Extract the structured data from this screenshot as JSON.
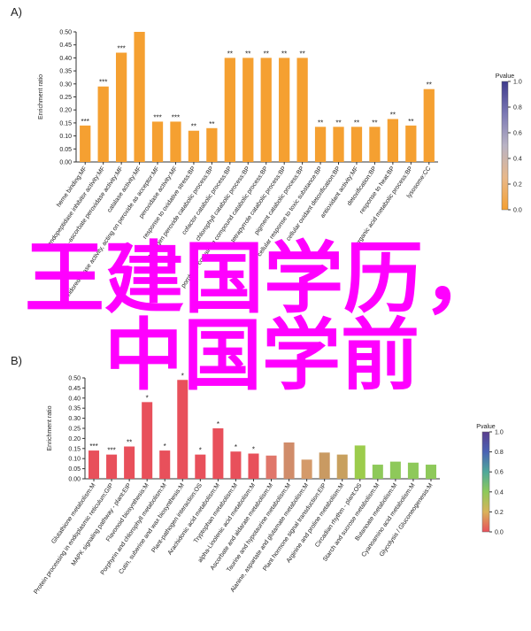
{
  "chart_data": [
    {
      "type": "bar",
      "panel": "A)",
      "ylabel": "Enrichment ratio",
      "color": "#f5a031",
      "categories": [
        "heme binding:MF",
        "endopeptidase inhibitor activity:MF",
        "L-ascorbate peroxidase activity:MF",
        "catalase activity:MF",
        "oxidoreductase activity, acting on peroxide as acceptor:MF",
        "peroxidase activity:MF",
        "response to oxidative stress:BP",
        "hydrogen peroxide catabolic process:BP",
        "cofactor catabolic process:BP",
        "chlorophyll catabolic process:BP",
        "porphyrin-containing compound catabolic process:BP",
        "tetrapyrrole catabolic process:BP",
        "pigment catabolic process:BP",
        "cellular response to toxic substance:BP",
        "cellular oxidant detoxification:BP",
        "antioxidant activity:MF",
        "detoxification:BP",
        "response to heat:BP",
        "organic acid metabolic process:BP",
        "lysosome:CC"
      ],
      "values": [
        0.14,
        0.29,
        0.42,
        0.5,
        0.155,
        0.155,
        0.12,
        0.13,
        0.4,
        0.4,
        0.4,
        0.4,
        0.4,
        0.135,
        0.135,
        0.135,
        0.135,
        0.165,
        0.14,
        0.28
      ],
      "significance": [
        "***",
        "***",
        "***",
        null,
        "***",
        "***",
        "**",
        "**",
        "**",
        "**",
        "**",
        "**",
        "**",
        "**",
        "**",
        "**",
        "**",
        "**",
        "**",
        "**"
      ],
      "ylim": [
        0,
        0.5
      ],
      "yticks": [
        {
          "value": 0,
          "label": "0.00"
        },
        {
          "value": 0.05,
          "label": "0.05"
        },
        {
          "value": 0.1,
          "label": "0.10"
        },
        {
          "value": 0.15,
          "label": "0.15"
        },
        {
          "value": 0.2,
          "label": "0.20"
        },
        {
          "value": 0.25,
          "label": "0.25"
        },
        {
          "value": 0.3,
          "label": "0.30"
        },
        {
          "value": 0.35,
          "label": "0.35"
        },
        {
          "value": 0.4,
          "label": "0.40"
        },
        {
          "value": 0.45,
          "label": "0.45"
        },
        {
          "value": 0.5,
          "label": "0.50"
        }
      ],
      "colorbar": {
        "title": "Pvalue",
        "lim": [
          0,
          1
        ],
        "colors": [
          "#f5a031",
          "#e8b88a",
          "#b9b3c4",
          "#7b78b4",
          "#3e3a8c"
        ],
        "ticks": [
          {
            "value": 0,
            "label": "0.0"
          },
          {
            "value": 0.2,
            "label": "0.2"
          },
          {
            "value": 0.4,
            "label": "0.4"
          },
          {
            "value": 0.6,
            "label": "0.6"
          },
          {
            "value": 0.8,
            "label": "0.8"
          },
          {
            "value": 1,
            "label": "1.0"
          }
        ]
      }
    },
    {
      "type": "bar",
      "panel": "B)",
      "ylabel": "Enrichment ratio",
      "categories": [
        "Glutathione metabolism:M",
        "Protein processing in endoplasmic reticulum:GIP",
        "MAPK signaling pathway - plant:EIP",
        "Flavonoid biosynthesis:M",
        "Porphyrin and chlorophyll metabolism:M",
        "Cutin, suberine and wax biosynthesis:M",
        "Plant-pathogen interaction:OS",
        "Arachidonic acid metabolism:M",
        "Tryptophan metabolism:M",
        "alpha-Linolenic acid metabolism:M",
        "Ascorbate and aldarate metabolism:M",
        "Taurine and hypotaurine metabolism:M",
        "Alanine, aspartate and glutamate metabolism:M",
        "Plant hormone signal transduction:EIP",
        "Arginine and proline metabolism:M",
        "Circadian rhythm - plant:OS",
        "Starch and sucrose metabolism:M",
        "Butanoate metabolism:M",
        "Cyanoamino acid metabolism:M",
        "Glycolysis / Gluconeogenesis:M"
      ],
      "values": [
        0.14,
        0.12,
        0.16,
        0.38,
        0.14,
        0.49,
        0.12,
        0.25,
        0.135,
        0.125,
        0.115,
        0.18,
        0.095,
        0.13,
        0.12,
        0.165,
        0.07,
        0.085,
        0.08,
        0.07
      ],
      "colors": [
        "#e8505b",
        "#e8505b",
        "#e8505b",
        "#e8505b",
        "#e8505b",
        "#e8505b",
        "#e8505b",
        "#e8505b",
        "#e8505b",
        "#e8505b",
        "#e0766a",
        "#d08c6a",
        "#d49a6a",
        "#c99a62",
        "#c8a05e",
        "#9ccc4c",
        "#8ec95a",
        "#8ec95a",
        "#8ec95a",
        "#8ec95a"
      ],
      "significance": [
        "***",
        "***",
        "**",
        "*",
        "*",
        "*",
        "*",
        "*",
        "*",
        "*",
        null,
        null,
        null,
        null,
        null,
        null,
        null,
        null,
        null,
        null
      ],
      "ylim": [
        0,
        0.5
      ],
      "yticks": [
        {
          "value": 0,
          "label": "0.00"
        },
        {
          "value": 0.05,
          "label": "0.05"
        },
        {
          "value": 0.1,
          "label": "0.10"
        },
        {
          "value": 0.15,
          "label": "0.15"
        },
        {
          "value": 0.2,
          "label": "0.20"
        },
        {
          "value": 0.25,
          "label": "0.25"
        },
        {
          "value": 0.3,
          "label": "0.30"
        },
        {
          "value": 0.35,
          "label": "0.35"
        },
        {
          "value": 0.4,
          "label": "0.40"
        },
        {
          "value": 0.45,
          "label": "0.45"
        },
        {
          "value": 0.5,
          "label": "0.50"
        }
      ],
      "colorbar": {
        "title": "Pvalue",
        "lim": [
          0,
          1
        ],
        "colors": [
          "#e8505b",
          "#d9b25a",
          "#8ec95a",
          "#4fa89a",
          "#4a63b4",
          "#5a3e8e"
        ],
        "ticks": [
          {
            "value": 0,
            "label": "0.0"
          },
          {
            "value": 0.2,
            "label": "0.2"
          },
          {
            "value": 0.4,
            "label": "0.4"
          },
          {
            "value": 0.6,
            "label": "0.6"
          },
          {
            "value": 0.8,
            "label": "0.8"
          },
          {
            "value": 1,
            "label": "1.0"
          }
        ]
      }
    }
  ],
  "overlay": [
    "王建国学历，",
    "中国学前"
  ]
}
